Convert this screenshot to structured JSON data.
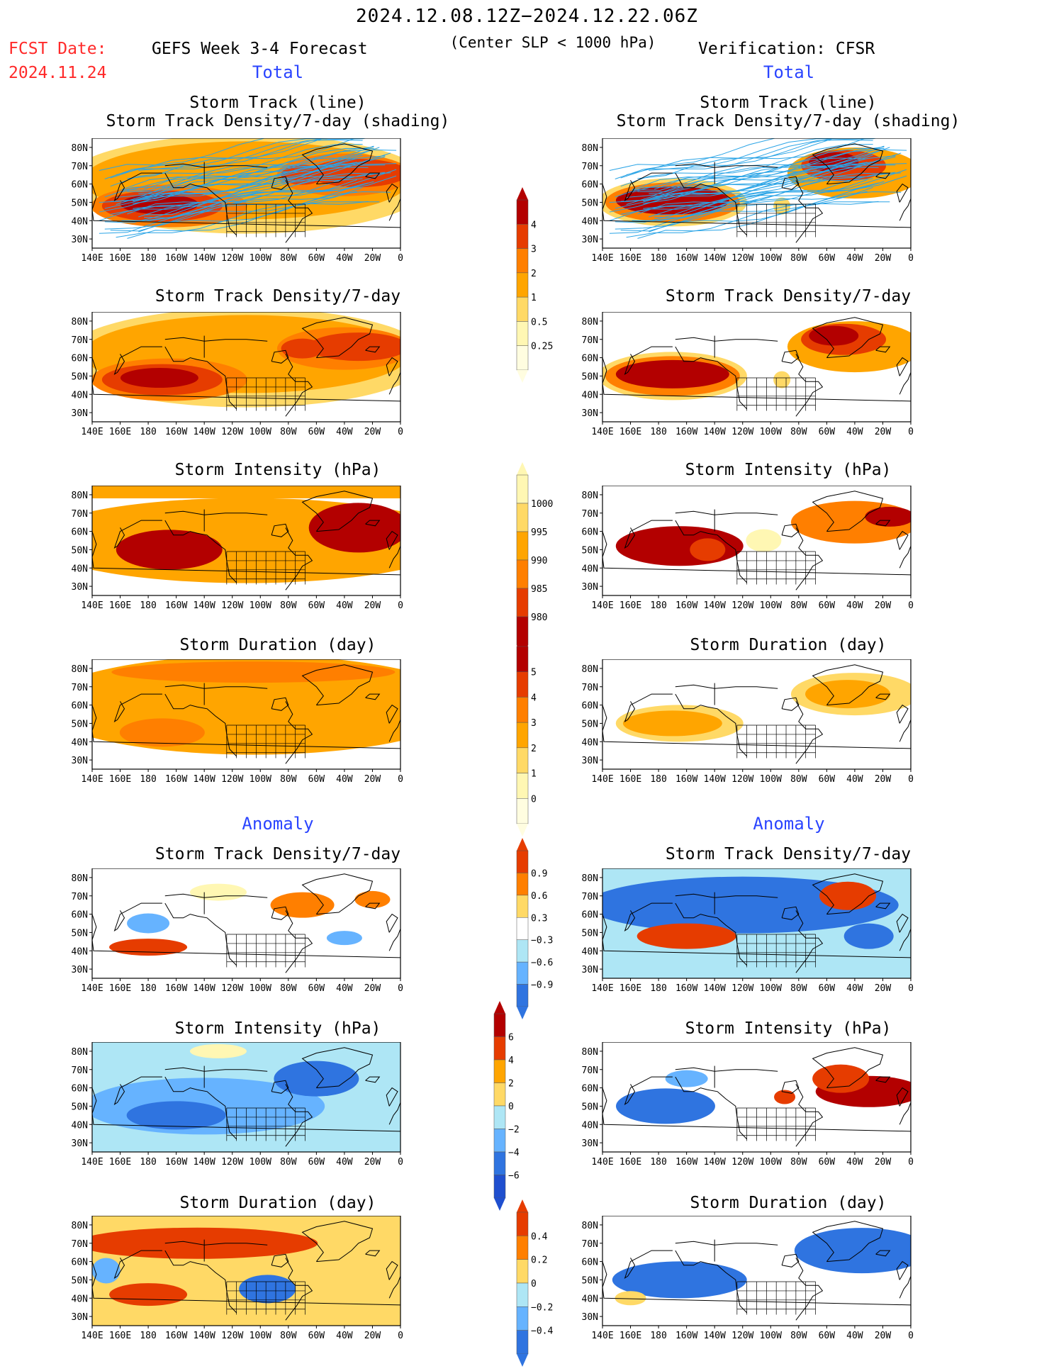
{
  "header": {
    "period": "2024.12.08.12Z−2024.12.22.06Z",
    "fcst_label": "FCST Date:",
    "fcst_date": "2024.11.24",
    "left_title": "GEFS Week 3-4 Forecast",
    "center_note": "(Center SLP < 1000 hPa)",
    "right_title": "Verification: CFSR"
  },
  "sections": {
    "total_left": "Total",
    "total_right": "Total",
    "anomaly_left": "Anomaly",
    "anomaly_right": "Anomaly"
  },
  "panel_titles": {
    "track_line": "Storm Track (line)",
    "track_shading": "Storm Track Density/7-day (shading)",
    "density": "Storm Track Density/7-day",
    "intensity": "Storm Intensity (hPa)",
    "duration": "Storm Duration (day)"
  },
  "map": {
    "lat_labels": [
      "80N",
      "70N",
      "60N",
      "50N",
      "40N",
      "30N"
    ],
    "lon_labels": [
      "140E",
      "160E",
      "180",
      "160W",
      "140W",
      "120W",
      "100W",
      "80W",
      "60W",
      "40W",
      "20W",
      "0"
    ]
  },
  "colorbars": {
    "density": [
      "4",
      "3",
      "2",
      "1",
      "0.5",
      "0.25"
    ],
    "intensity": [
      "1000",
      "995",
      "990",
      "985",
      "980"
    ],
    "duration": [
      "5",
      "4",
      "3",
      "2",
      "1",
      "0"
    ],
    "density_anom": [
      "0.9",
      "0.6",
      "0.3",
      "−0.3",
      "−0.6",
      "−0.9"
    ],
    "intensity_anom": [
      "6",
      "4",
      "2",
      "0",
      "−2",
      "−4",
      "−6"
    ],
    "duration_anom": [
      "0.4",
      "0.2",
      "0",
      "−0.2",
      "−0.4"
    ]
  },
  "colors": {
    "warm": [
      "#fff7b3",
      "#ffd966",
      "#ffa500",
      "#ff7f00",
      "#e63c00",
      "#b30000"
    ],
    "cool": [
      "#aee6f5",
      "#66b3ff",
      "#2f74e0",
      "#1f4fcf"
    ],
    "track_line": "#2aa4e6"
  }
}
